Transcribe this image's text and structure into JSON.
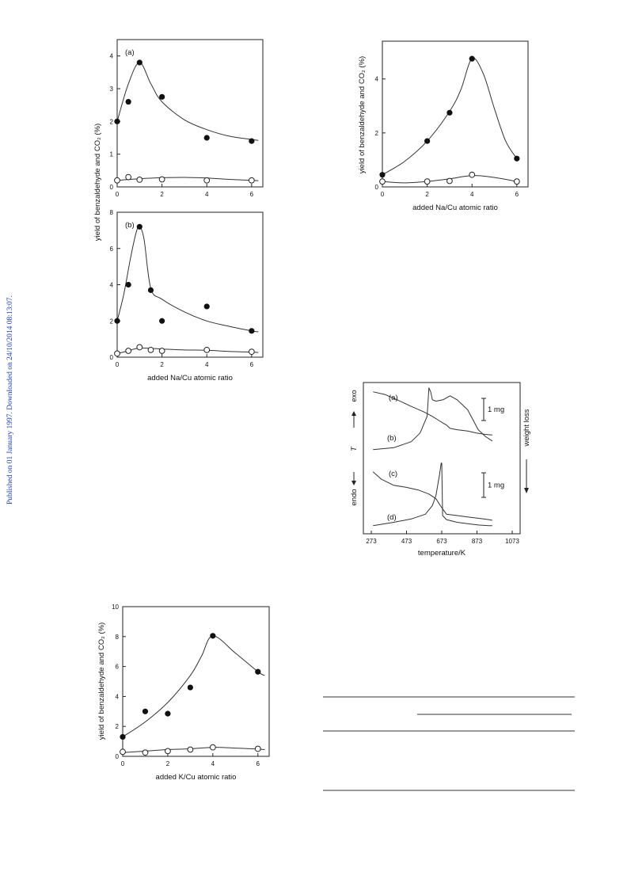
{
  "watermark": "Published on 01 January 1997. Downloaded on 24/10/2014 08:13:07.",
  "chart_data": [
    {
      "type": "scatter",
      "panel_label": "(a)",
      "xlabel": "",
      "ylabel": "yield of benzaldehyde and CO₂ (%)",
      "xlim": [
        0,
        6.5
      ],
      "ylim": [
        0,
        4.5
      ],
      "xticks": [
        0,
        2,
        4,
        6
      ],
      "yticks": [
        0,
        1,
        2,
        3,
        4
      ],
      "series": [
        {
          "marker": "filled",
          "x": [
            0,
            0.5,
            1,
            2,
            4,
            6
          ],
          "y": [
            2.0,
            2.6,
            3.8,
            2.75,
            1.5,
            1.4
          ],
          "fit_x": [
            0,
            0.5,
            1,
            1.5,
            2,
            3,
            4,
            5,
            6,
            6.3
          ],
          "fit_y": [
            2.0,
            3.15,
            3.8,
            3.15,
            2.6,
            2.05,
            1.75,
            1.55,
            1.45,
            1.42
          ]
        },
        {
          "marker": "open",
          "x": [
            0,
            0.5,
            1,
            2,
            4,
            6
          ],
          "y": [
            0.2,
            0.3,
            0.22,
            0.23,
            0.2,
            0.2
          ],
          "fit_x": [
            0,
            1,
            2,
            3,
            4,
            5,
            6,
            6.3
          ],
          "fit_y": [
            0.2,
            0.25,
            0.28,
            0.29,
            0.27,
            0.23,
            0.2,
            0.19
          ]
        }
      ]
    },
    {
      "type": "scatter",
      "panel_label": "(b)",
      "xlabel": "added Na/Cu atomic ratio",
      "ylabel": "",
      "xlim": [
        0,
        6.5
      ],
      "ylim": [
        0,
        8
      ],
      "xticks": [
        0,
        2,
        4,
        6
      ],
      "yticks": [
        0,
        2,
        4,
        6,
        8
      ],
      "series": [
        {
          "marker": "filled",
          "x": [
            0,
            0.5,
            1,
            1.5,
            2,
            4,
            6
          ],
          "y": [
            2.0,
            4.0,
            7.2,
            3.7,
            2.0,
            2.8,
            1.45
          ],
          "fit_x": [
            0,
            0.3,
            0.6,
            0.85,
            1,
            1.2,
            1.5,
            2,
            3,
            4,
            5,
            6,
            6.3
          ],
          "fit_y": [
            2.0,
            3.5,
            5.5,
            6.9,
            7.2,
            6.5,
            3.8,
            3.2,
            2.5,
            2.0,
            1.7,
            1.45,
            1.4
          ]
        },
        {
          "marker": "open",
          "x": [
            0,
            0.5,
            1,
            1.5,
            2,
            4,
            6
          ],
          "y": [
            0.2,
            0.35,
            0.55,
            0.4,
            0.35,
            0.4,
            0.3
          ],
          "fit_x": [
            0,
            0.5,
            1,
            2,
            3,
            4,
            5,
            6,
            6.3
          ],
          "fit_y": [
            0.2,
            0.35,
            0.5,
            0.45,
            0.4,
            0.38,
            0.32,
            0.28,
            0.26
          ]
        }
      ]
    },
    {
      "type": "scatter",
      "xlabel": "added Na/Cu atomic ratio",
      "ylabel": "yield of benzaldehyde and CO₂ (%)",
      "xlim": [
        0,
        6.5
      ],
      "ylim": [
        0,
        5.4
      ],
      "xticks": [
        0,
        2,
        4,
        6
      ],
      "yticks": [
        0,
        2,
        4
      ],
      "series": [
        {
          "marker": "filled",
          "x": [
            0,
            2,
            3,
            4,
            6
          ],
          "y": [
            0.45,
            1.7,
            2.75,
            4.75,
            1.05
          ],
          "fit_x": [
            0,
            1,
            2,
            3,
            3.5,
            4,
            4.5,
            5,
            5.5,
            6
          ],
          "fit_y": [
            0.45,
            0.95,
            1.7,
            2.8,
            3.6,
            4.75,
            4.2,
            2.9,
            1.7,
            1.05
          ]
        },
        {
          "marker": "open",
          "x": [
            0,
            2,
            3,
            4,
            6
          ],
          "y": [
            0.2,
            0.2,
            0.22,
            0.45,
            0.2
          ],
          "fit_x": [
            0,
            1,
            2,
            3,
            4,
            5,
            6
          ],
          "fit_y": [
            0.2,
            0.15,
            0.2,
            0.3,
            0.42,
            0.35,
            0.2
          ]
        }
      ]
    },
    {
      "type": "line",
      "xlabel": "temperature/K",
      "xticks": [
        273,
        473,
        673,
        873,
        1073
      ],
      "xlim": [
        273,
        1073
      ],
      "curve_labels": [
        "(a)",
        "(b)",
        "(c)",
        "(d)"
      ],
      "scale_labels": [
        "1 mg",
        "1 mg"
      ],
      "left_axis_labels": [
        "endo",
        "T",
        "exo"
      ],
      "right_axis_label": "weight loss",
      "series": [
        {
          "name": "(a)",
          "x": [
            283,
            350,
            420,
            500,
            570,
            620,
            650,
            680,
            700,
            720,
            760,
            820,
            870,
            920,
            960
          ],
          "y": [
            0.92,
            0.88,
            0.8,
            0.7,
            0.62,
            0.55,
            0.5,
            0.45,
            0.42,
            0.37,
            0.35,
            0.33,
            0.3,
            0.28,
            0.27
          ]
        },
        {
          "name": "(b)",
          "x": [
            283,
            400,
            500,
            550,
            590,
            600,
            610,
            620,
            640,
            680,
            720,
            760,
            820,
            880,
            920,
            960
          ],
          "y": [
            0.05,
            0.08,
            0.17,
            0.3,
            0.55,
            0.98,
            0.92,
            0.8,
            0.78,
            0.8,
            0.86,
            0.8,
            0.65,
            0.35,
            0.25,
            0.18
          ]
        },
        {
          "name": "(c)",
          "x": [
            283,
            330,
            400,
            470,
            540,
            600,
            640,
            670,
            700,
            760,
            820,
            880,
            940,
            960
          ],
          "y": [
            0.85,
            0.74,
            0.65,
            0.62,
            0.58,
            0.52,
            0.45,
            0.33,
            0.22,
            0.2,
            0.18,
            0.16,
            0.14,
            0.13
          ]
        },
        {
          "name": "(d)",
          "x": [
            283,
            400,
            500,
            580,
            620,
            640,
            660,
            670,
            673,
            678,
            700,
            760,
            820,
            880,
            940,
            960
          ],
          "y": [
            0.05,
            0.1,
            0.15,
            0.22,
            0.35,
            0.5,
            0.8,
            0.98,
            0.98,
            0.2,
            0.14,
            0.1,
            0.08,
            0.06,
            0.05,
            0.05
          ]
        }
      ]
    },
    {
      "type": "scatter",
      "xlabel": "added K/Cu atomic ratio",
      "ylabel": "yield of benzaldehyde and CO₂ (%)",
      "xlim": [
        0,
        6.5
      ],
      "ylim": [
        0,
        10
      ],
      "xticks": [
        0,
        2,
        4,
        6
      ],
      "yticks": [
        0,
        2,
        4,
        6,
        8,
        10
      ],
      "series": [
        {
          "marker": "filled",
          "x": [
            0,
            1,
            2,
            3,
            4,
            6
          ],
          "y": [
            1.3,
            3.0,
            2.85,
            4.6,
            8.05,
            5.65
          ],
          "fit_x": [
            0,
            1,
            2,
            3,
            3.5,
            4,
            5,
            6,
            6.3
          ],
          "fit_y": [
            1.3,
            2.3,
            3.6,
            5.4,
            6.7,
            8.05,
            6.9,
            5.65,
            5.4
          ]
        },
        {
          "marker": "open",
          "x": [
            0,
            1,
            2,
            3,
            4,
            6
          ],
          "y": [
            0.3,
            0.25,
            0.35,
            0.45,
            0.6,
            0.5
          ],
          "fit_x": [
            0,
            1,
            2,
            3,
            4,
            5,
            6,
            6.3
          ],
          "fit_y": [
            0.25,
            0.35,
            0.45,
            0.5,
            0.6,
            0.55,
            0.48,
            0.45
          ]
        }
      ]
    }
  ]
}
